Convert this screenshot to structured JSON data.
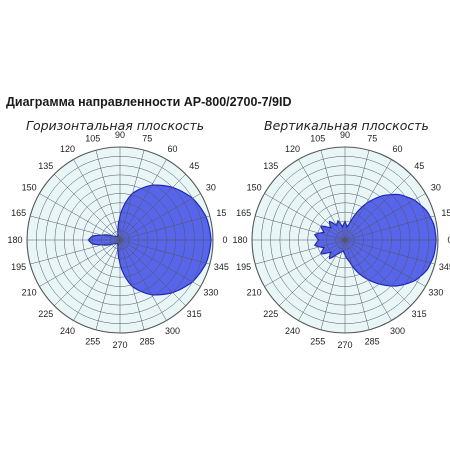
{
  "title": "Диаграмма направленности AP-800/2700-7/9ID",
  "chart_data": [
    {
      "type": "polar-area",
      "title": "Горизонтальная плоскость",
      "angle_ticks": [
        "0",
        "15",
        "30",
        "45",
        "60",
        "75",
        "90",
        "105",
        "120",
        "135",
        "150",
        "165",
        "180",
        "195",
        "210",
        "225",
        "240",
        "255",
        "270",
        "285",
        "300",
        "315",
        "330",
        "345"
      ],
      "angle_values": [
        0,
        15,
        30,
        45,
        60,
        75,
        90,
        105,
        120,
        135,
        150,
        165,
        180,
        195,
        210,
        225,
        240,
        255,
        270,
        285,
        300,
        315,
        330,
        345
      ],
      "rlim": [
        0,
        1
      ],
      "grid": true,
      "series": [
        {
          "color": "#4a58e8",
          "pattern": [
            [
              0,
              0.98
            ],
            [
              15,
              0.96
            ],
            [
              30,
              0.9
            ],
            [
              45,
              0.8
            ],
            [
              60,
              0.68
            ],
            [
              75,
              0.52
            ],
            [
              85,
              0.35
            ],
            [
              92,
              0.22
            ],
            [
              100,
              0.12
            ],
            [
              110,
              0.06
            ],
            [
              125,
              0.04
            ],
            [
              150,
              0.08
            ],
            [
              165,
              0.2
            ],
            [
              172,
              0.3
            ],
            [
              180,
              0.34
            ],
            [
              188,
              0.3
            ],
            [
              195,
              0.2
            ],
            [
              210,
              0.08
            ],
            [
              235,
              0.04
            ],
            [
              250,
              0.06
            ],
            [
              260,
              0.12
            ],
            [
              268,
              0.22
            ],
            [
              275,
              0.35
            ],
            [
              285,
              0.52
            ],
            [
              300,
              0.68
            ],
            [
              315,
              0.8
            ],
            [
              330,
              0.9
            ],
            [
              345,
              0.96
            ],
            [
              360,
              0.98
            ]
          ]
        }
      ]
    },
    {
      "type": "polar-area",
      "title": "Вертикальная плоскость",
      "angle_ticks": [
        "0",
        "15",
        "30",
        "45",
        "60",
        "75",
        "90",
        "105",
        "120",
        "135",
        "150",
        "165",
        "180",
        "195",
        "210",
        "225",
        "240",
        "255",
        "270",
        "285",
        "300",
        "315",
        "330",
        "345"
      ],
      "angle_values": [
        0,
        15,
        30,
        45,
        60,
        75,
        90,
        105,
        120,
        135,
        150,
        165,
        180,
        195,
        210,
        225,
        240,
        255,
        270,
        285,
        300,
        315,
        330,
        345
      ],
      "rlim": [
        0,
        1
      ],
      "grid": true,
      "series": [
        {
          "color": "#4a58e8",
          "pattern": [
            [
              0,
              0.98
            ],
            [
              10,
              0.97
            ],
            [
              20,
              0.93
            ],
            [
              30,
              0.86
            ],
            [
              40,
              0.76
            ],
            [
              50,
              0.62
            ],
            [
              60,
              0.45
            ],
            [
              68,
              0.3
            ],
            [
              75,
              0.18
            ],
            [
              82,
              0.14
            ],
            [
              90,
              0.2
            ],
            [
              100,
              0.14
            ],
            [
              110,
              0.22
            ],
            [
              120,
              0.18
            ],
            [
              130,
              0.26
            ],
            [
              140,
              0.2
            ],
            [
              150,
              0.3
            ],
            [
              160,
              0.24
            ],
            [
              170,
              0.33
            ],
            [
              180,
              0.28
            ],
            [
              190,
              0.33
            ],
            [
              200,
              0.24
            ],
            [
              210,
              0.3
            ],
            [
              220,
              0.2
            ],
            [
              230,
              0.26
            ],
            [
              240,
              0.18
            ],
            [
              250,
              0.14
            ],
            [
              262,
              0.12
            ],
            [
              270,
              0.16
            ],
            [
              282,
              0.24
            ],
            [
              292,
              0.38
            ],
            [
              305,
              0.56
            ],
            [
              318,
              0.74
            ],
            [
              330,
              0.87
            ],
            [
              340,
              0.94
            ],
            [
              350,
              0.97
            ],
            [
              360,
              0.98
            ]
          ]
        }
      ]
    }
  ]
}
